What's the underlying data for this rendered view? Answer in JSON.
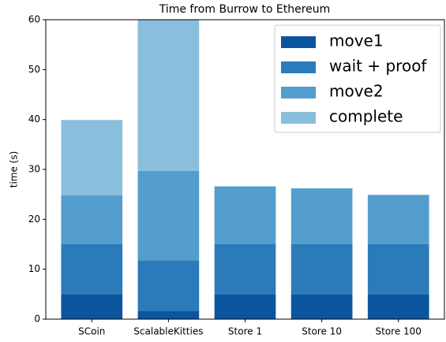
{
  "chart_data": {
    "type": "stacked_bar",
    "title": "Time from Burrow to Ethereum",
    "y_label": "time (s)",
    "categories": [
      "SCoin",
      "ScalableKitties",
      "Store 1",
      "Store 10",
      "Store 100"
    ],
    "series": [
      {
        "name": "move1",
        "color": "#0b559f",
        "values": [
          5,
          1.7,
          5,
          5,
          5
        ]
      },
      {
        "name": "wait + proof",
        "color": "#2b7bba",
        "values": [
          10,
          10.1,
          10,
          10,
          10
        ]
      },
      {
        "name": "move2",
        "color": "#539ecd",
        "values": [
          9.8,
          17.9,
          11.6,
          11.2,
          9.9
        ]
      },
      {
        "name": "complete",
        "color": "#89bedc",
        "values": [
          15.1,
          30.3,
          0,
          0,
          0
        ]
      }
    ],
    "ylim": [
      0,
      60
    ],
    "yticks": [
      0,
      10,
      20,
      30,
      40,
      50,
      60
    ],
    "legend": "upper right"
  }
}
